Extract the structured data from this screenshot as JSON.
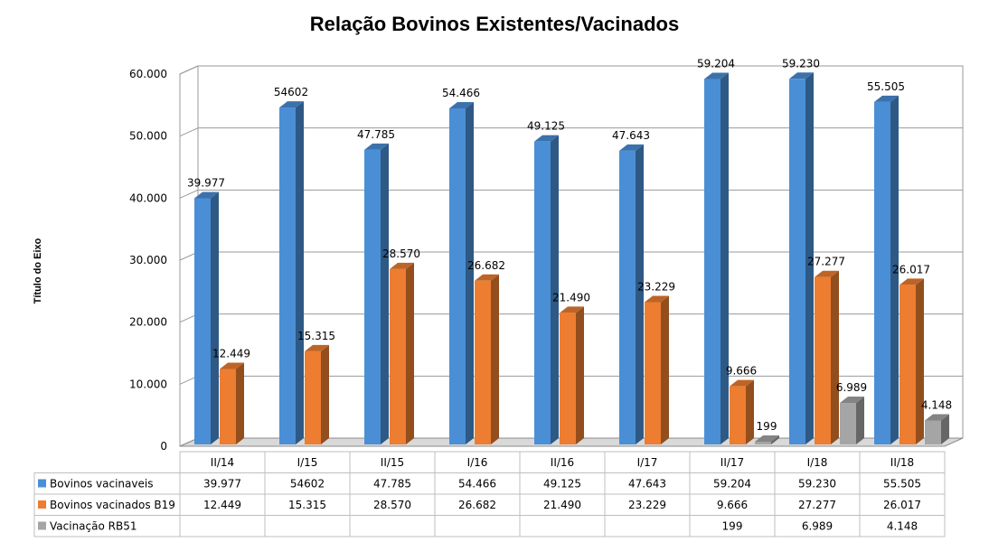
{
  "chart_data": {
    "type": "bar",
    "title": "Relação Bovinos Existentes/Vacinados",
    "ylabel": "Título do Eixo",
    "ylim": [
      0,
      60000
    ],
    "y_ticks": [
      "0",
      "10.000",
      "20.000",
      "30.000",
      "40.000",
      "50.000",
      "60.000"
    ],
    "grid": true,
    "legend": "data-table",
    "categories": [
      "II/14",
      "I/15",
      "II/15",
      "I/16",
      "II/16",
      "I/17",
      "II/17",
      "I/18",
      "II/18"
    ],
    "series": [
      {
        "name": "Bovinos  vacinaveis",
        "color": "#4A8FD6",
        "values": [
          39977,
          54602,
          47785,
          54466,
          49125,
          47643,
          59204,
          59230,
          55505
        ],
        "labels": [
          "39.977",
          "54602",
          "47.785",
          "54.466",
          "49.125",
          "47.643",
          "59.204",
          "59.230",
          "55.505"
        ]
      },
      {
        "name": "Bovinos vacinados B19",
        "color": "#ED7D31",
        "values": [
          12449,
          15315,
          28570,
          26682,
          21490,
          23229,
          9666,
          27277,
          26017
        ],
        "labels": [
          "12.449",
          "15.315",
          "28.570",
          "26.682",
          "21.490",
          "23.229",
          "9.666",
          "27.277",
          "26.017"
        ]
      },
      {
        "name": "Vacinação RB51",
        "color": "#A5A5A5",
        "values": [
          null,
          null,
          null,
          null,
          null,
          null,
          199,
          6989,
          4148
        ],
        "labels": [
          "",
          "",
          "",
          "",
          "",
          "",
          "199",
          "6.989",
          "4.148"
        ]
      }
    ]
  }
}
